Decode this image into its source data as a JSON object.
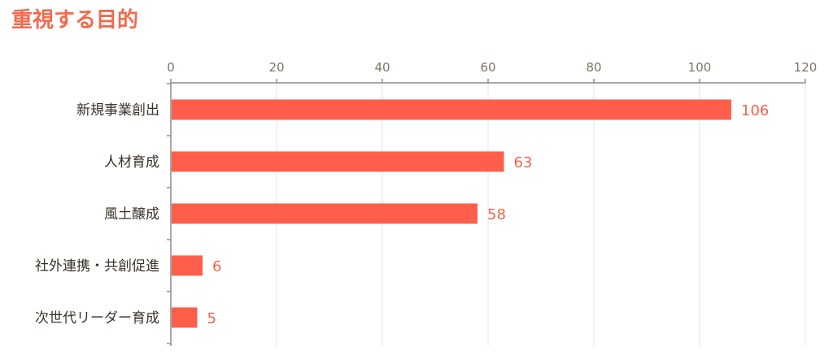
{
  "chart_data": {
    "type": "bar",
    "orientation": "horizontal",
    "title": "重視する目的",
    "categories": [
      "新規事業創出",
      "人材育成",
      "風土醸成",
      "社外連携・共創促進",
      "次世代リーダー育成"
    ],
    "values": [
      106,
      63,
      58,
      6,
      5
    ],
    "xlim": [
      0,
      120
    ],
    "xticks": [
      0,
      20,
      40,
      60,
      80,
      100,
      120
    ],
    "x_axis_position": "top",
    "grid": true,
    "data_labels": true,
    "colors": {
      "bar": "#ff5e4a",
      "data_label": "#f4624c",
      "title": "#f26b4e",
      "category_label": "#3a3328",
      "tick_label": "#7d7565",
      "axis": "#8c8c8c",
      "grid": "#e6e6e6"
    }
  }
}
